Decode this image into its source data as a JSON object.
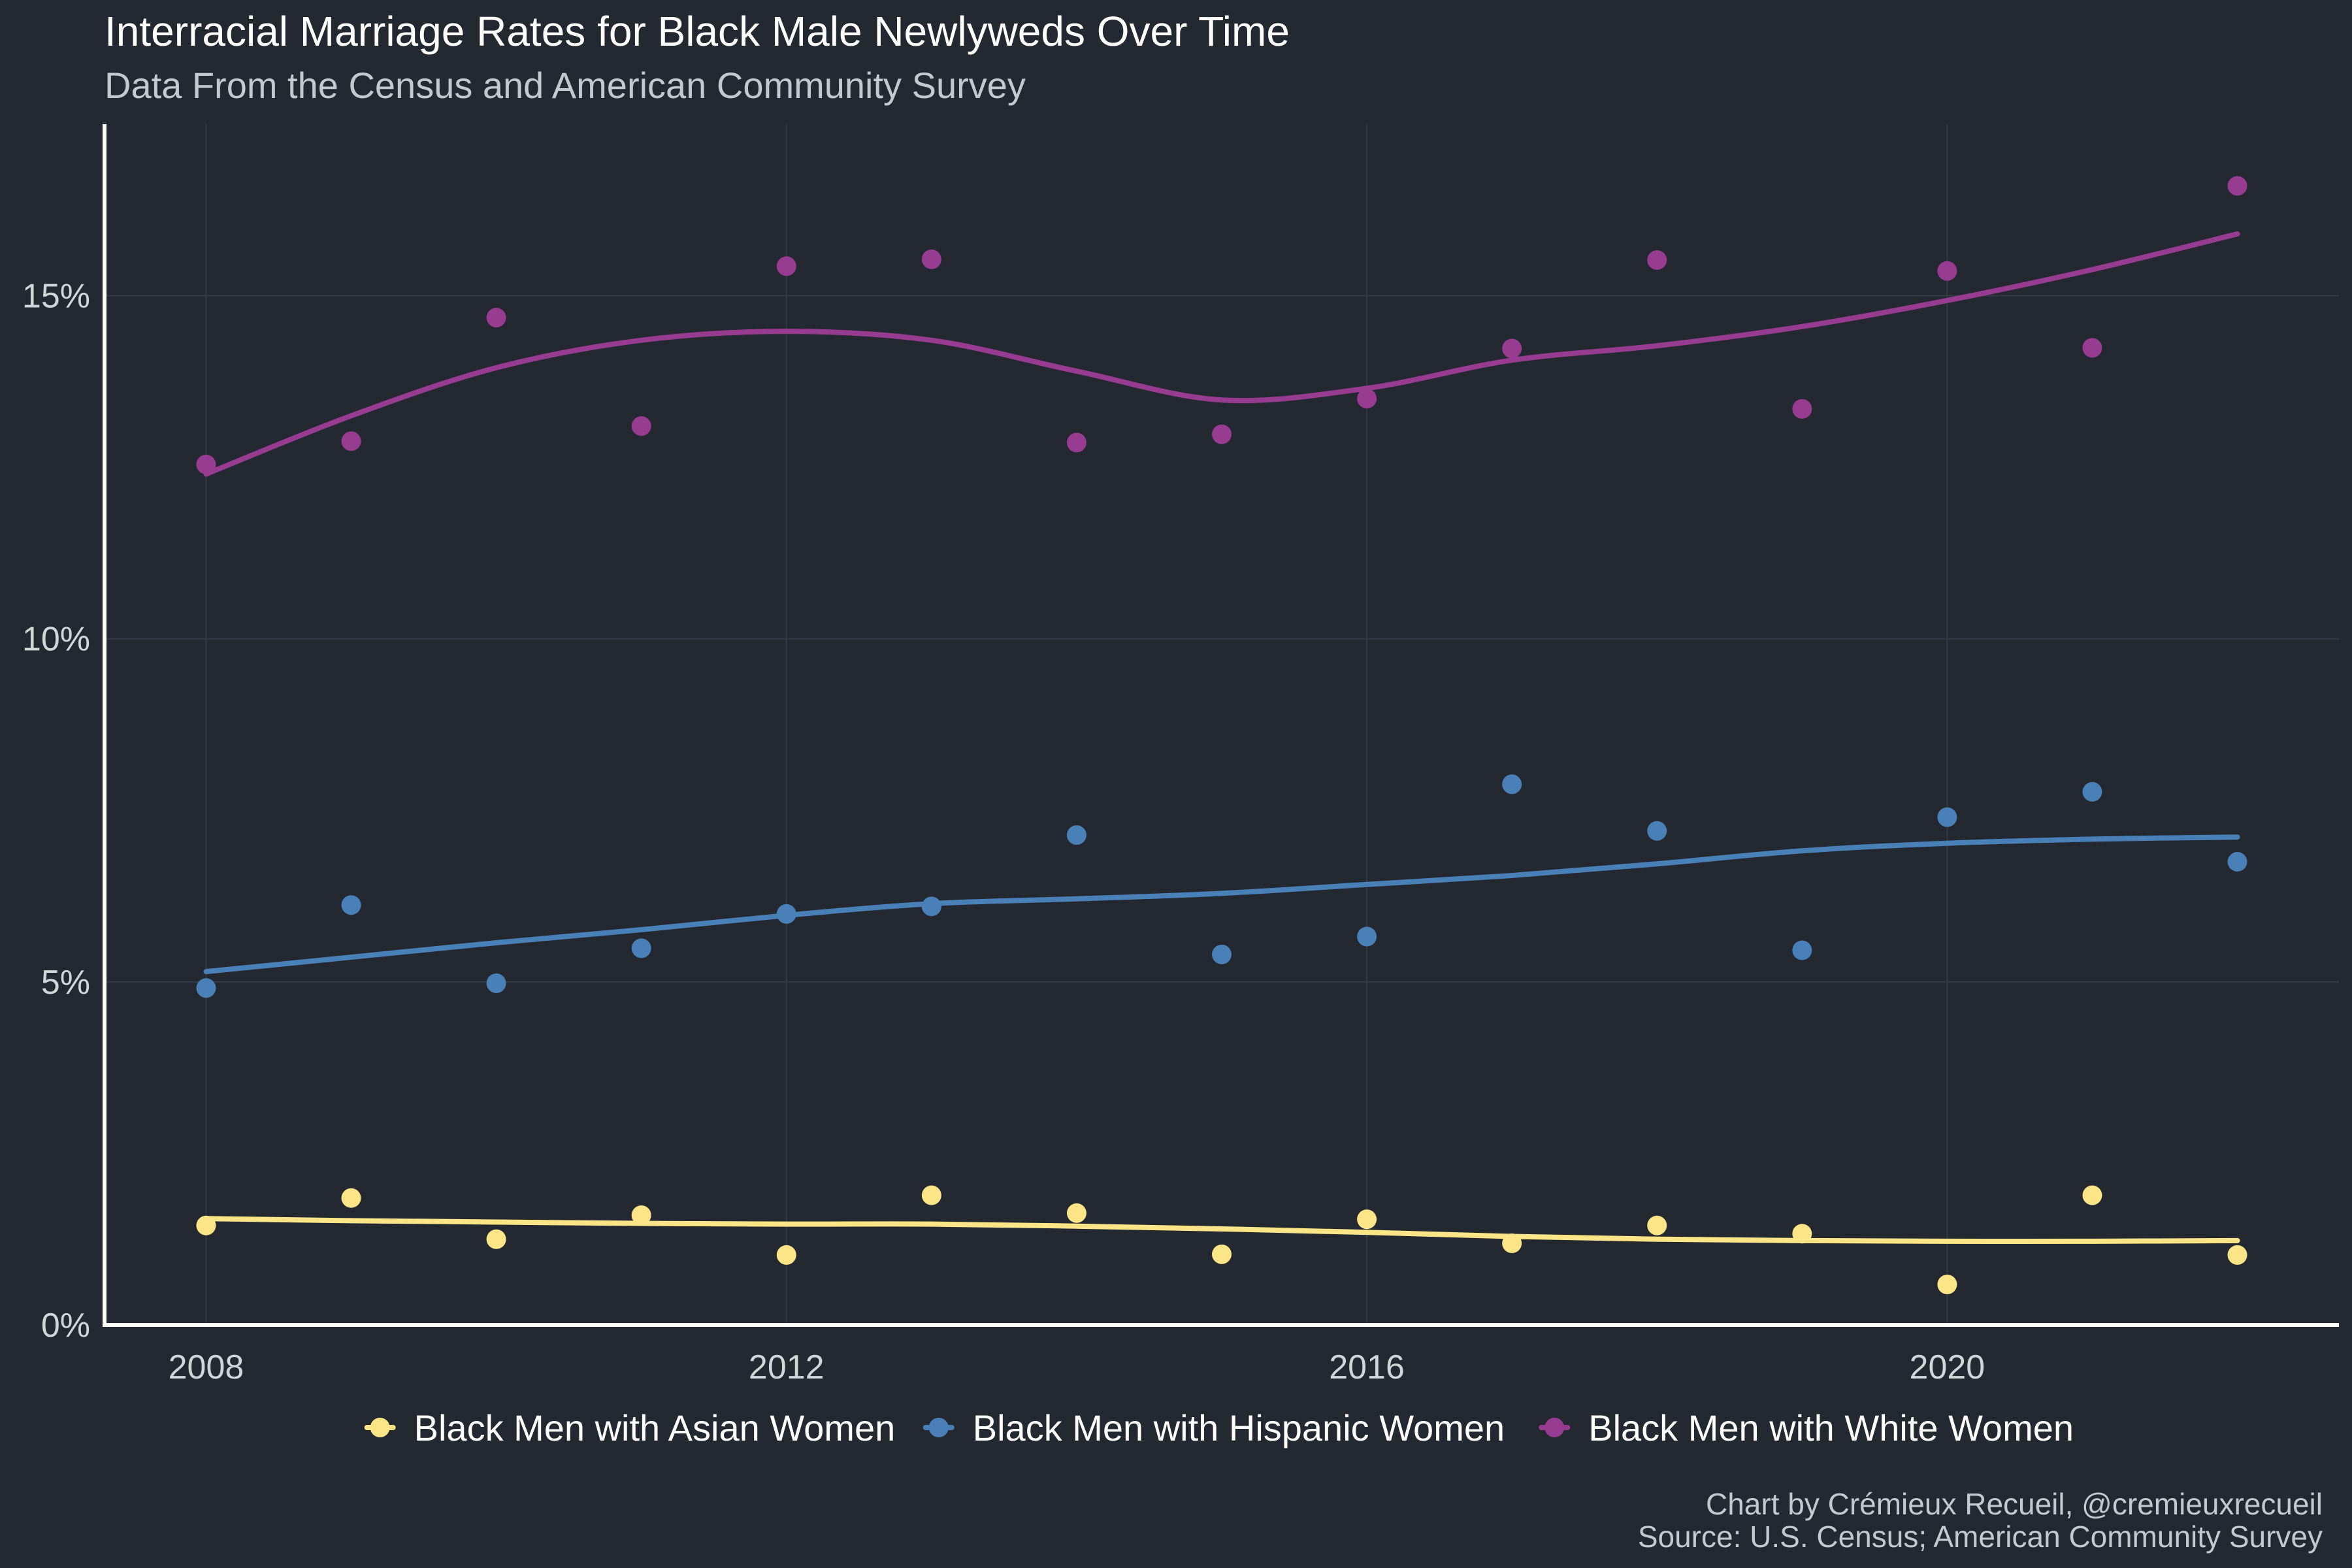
{
  "chart_data": {
    "type": "scatter",
    "title": "Interracial Marriage Rates for Black Male Newlyweds Over Time",
    "subtitle": "Data From the Census and American Community Survey",
    "xlabel": "",
    "ylabel": "",
    "xlim": [
      2007.3,
      2022.7
    ],
    "ylim": [
      0,
      17.5
    ],
    "x_ticks": [
      2008,
      2012,
      2016,
      2020
    ],
    "y_ticks": [
      0,
      5,
      10,
      15
    ],
    "y_tick_labels": [
      "0%",
      "5%",
      "10%",
      "15%"
    ],
    "grid": true,
    "legend_position": "bottom",
    "x": [
      2008,
      2009,
      2010,
      2011,
      2012,
      2013,
      2014,
      2015,
      2016,
      2017,
      2018,
      2019,
      2020,
      2021,
      2022
    ],
    "series": [
      {
        "name": "Black Men with Asian Women",
        "color": "#fbe586",
        "values": [
          1.45,
          1.85,
          1.25,
          1.6,
          1.02,
          1.89,
          1.63,
          1.03,
          1.54,
          1.19,
          1.45,
          1.33,
          0.59,
          1.89,
          1.02
        ],
        "trend": [
          1.55,
          1.52,
          1.5,
          1.48,
          1.47,
          1.47,
          1.44,
          1.4,
          1.35,
          1.29,
          1.25,
          1.23,
          1.22,
          1.22,
          1.23
        ]
      },
      {
        "name": "Black Men with Hispanic Women",
        "color": "#4a80b8",
        "values": [
          4.91,
          6.12,
          4.98,
          5.49,
          5.99,
          6.1,
          7.14,
          5.4,
          5.66,
          7.88,
          7.2,
          5.46,
          7.4,
          7.77,
          6.75
        ],
        "trend": [
          5.15,
          5.36,
          5.57,
          5.76,
          5.97,
          6.14,
          6.21,
          6.29,
          6.42,
          6.55,
          6.72,
          6.91,
          7.02,
          7.08,
          7.11
        ]
      },
      {
        "name": "Black Men with White Women",
        "color": "#983c91",
        "values": [
          12.54,
          12.88,
          14.68,
          13.1,
          15.43,
          15.53,
          12.86,
          12.98,
          13.5,
          14.23,
          15.52,
          13.35,
          15.36,
          14.24,
          16.6
        ],
        "trend": [
          12.4,
          13.25,
          13.95,
          14.35,
          14.48,
          14.35,
          13.9,
          13.48,
          13.65,
          14.06,
          14.27,
          14.55,
          14.93,
          15.38,
          15.9
        ]
      }
    ],
    "caption_line1": "Chart by Crémieux Recueil, @cremieuxrecueil",
    "caption_line2": "Source: U.S. Census; American Community Survey",
    "background_color": "#232831"
  }
}
